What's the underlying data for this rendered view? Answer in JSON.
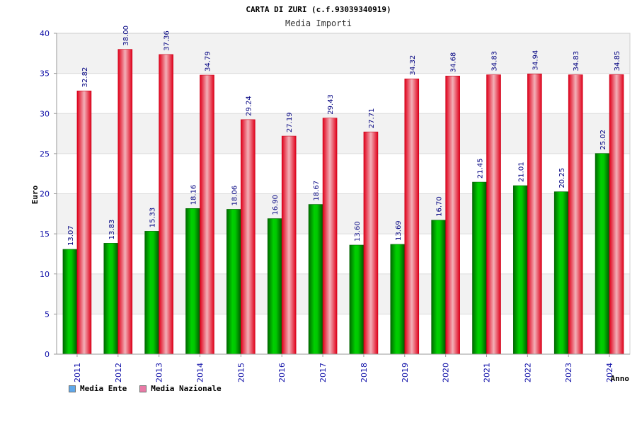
{
  "title": "CARTA DI ZURI (c.f.93039340919)",
  "subtitle": "Media Importi",
  "chart_data": {
    "type": "bar",
    "title": "CARTA DI ZURI (c.f.93039340919)",
    "subtitle": "Media Importi",
    "xlabel": "Anno",
    "ylabel": "Euro",
    "ylim": [
      0,
      40
    ],
    "yticks": [
      0,
      5,
      10,
      15,
      20,
      25,
      30,
      35,
      40
    ],
    "grid": true,
    "legend_position": "bottom-left",
    "categories": [
      "2011",
      "2012",
      "2013",
      "2014",
      "2015",
      "2016",
      "2017",
      "2018",
      "2019",
      "2020",
      "2021",
      "2022",
      "2023",
      "2024"
    ],
    "series": [
      {
        "name": "Media Ente",
        "color": "#00b000",
        "values": [
          13.07,
          13.83,
          15.33,
          18.16,
          18.06,
          16.9,
          18.67,
          13.6,
          13.69,
          16.7,
          21.45,
          21.01,
          20.25,
          25.02
        ],
        "labels": [
          "13.07",
          "13.83",
          "15.33",
          "18.16",
          "18.06",
          "16.90",
          "18.67",
          "13.60",
          "13.69",
          "16.70",
          "21.45",
          "21.01",
          "20.25",
          "25.02"
        ]
      },
      {
        "name": "Media Nazionale",
        "color": "#ee1c25",
        "values": [
          32.82,
          38.0,
          37.36,
          34.79,
          29.24,
          27.19,
          29.43,
          27.71,
          34.32,
          34.68,
          34.83,
          34.94,
          34.83,
          34.85
        ],
        "labels": [
          "32.82",
          "38.00",
          "37.36",
          "34.79",
          "29.24",
          "27.19",
          "29.43",
          "27.71",
          "34.32",
          "34.68",
          "34.83",
          "34.94",
          "34.83",
          "34.85"
        ]
      }
    ]
  },
  "legend": {
    "items": [
      {
        "label": "Media Ente",
        "color": "#5fa8ea"
      },
      {
        "label": "Media Nazionale",
        "color": "#e87aa6"
      }
    ]
  }
}
